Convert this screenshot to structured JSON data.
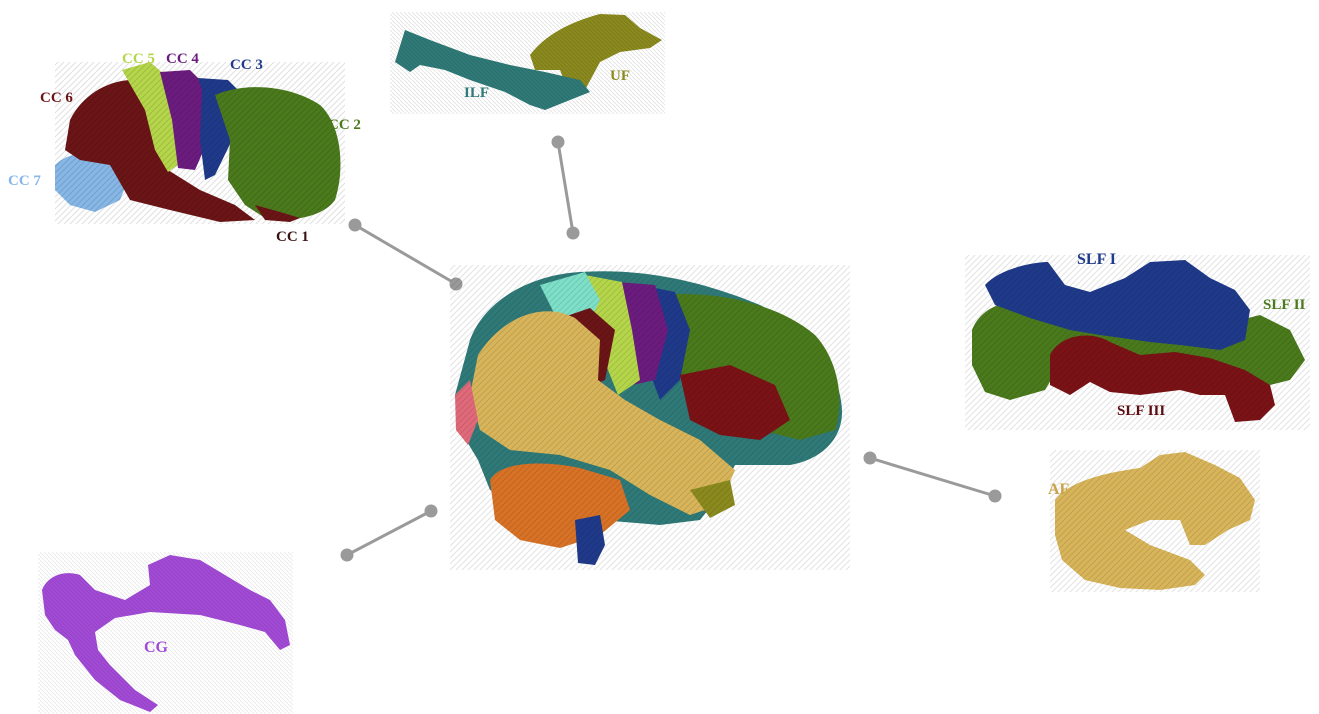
{
  "labels": {
    "cc1": "CC 1",
    "cc2": "CC 2",
    "cc3": "CC 3",
    "cc4": "CC 4",
    "cc5": "CC 5",
    "cc6": "CC 6",
    "cc7": "CC 7",
    "ilf": "ILF",
    "uf": "UF",
    "slf1": "SLF I",
    "slf2": "SLF II",
    "slf3": "SLF III",
    "af": "AF",
    "cg": "CG"
  },
  "colors": {
    "cc1": "#6b1516",
    "cc2": "#4a7a1c",
    "cc3": "#1f3a8a",
    "cc4": "#6b1c7e",
    "cc5": "#b5d64a",
    "cc6": "#6b1516",
    "cc7": "#86b7e6",
    "ilf": "#2f7a78",
    "uf": "#8a8a1e",
    "slf1": "#1f3a8a",
    "slf2": "#4a7a1c",
    "slf3": "#7a1216",
    "af": "#d8b55a",
    "cg": "#a24ad6",
    "connector": "#9a9a9a"
  }
}
